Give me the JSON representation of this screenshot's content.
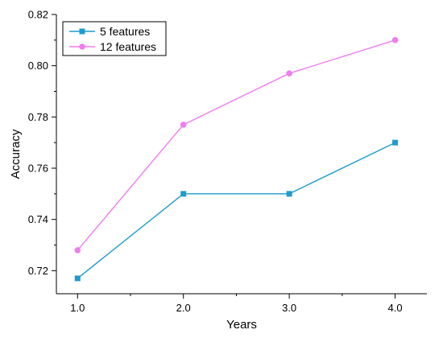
{
  "chart_data": {
    "type": "line",
    "xlabel": "Years",
    "ylabel": "Accuracy",
    "x": [
      1.0,
      2.0,
      3.0,
      4.0
    ],
    "x_ticks": [
      "1.0",
      "2.0",
      "3.0",
      "4.0"
    ],
    "y_ticks": [
      "0.72",
      "0.74",
      "0.76",
      "0.78",
      "0.80",
      "0.82"
    ],
    "xlim": [
      0.8,
      4.3
    ],
    "ylim": [
      0.711,
      0.82
    ],
    "grid": false,
    "legend_position": "top-left",
    "series": [
      {
        "name": "5 features",
        "values": [
          0.717,
          0.75,
          0.75,
          0.77
        ],
        "color": "#1e9bcf",
        "marker": "square"
      },
      {
        "name": "12 features",
        "values": [
          0.728,
          0.777,
          0.797,
          0.81
        ],
        "color": "#f07cf0",
        "marker": "circle"
      }
    ]
  }
}
